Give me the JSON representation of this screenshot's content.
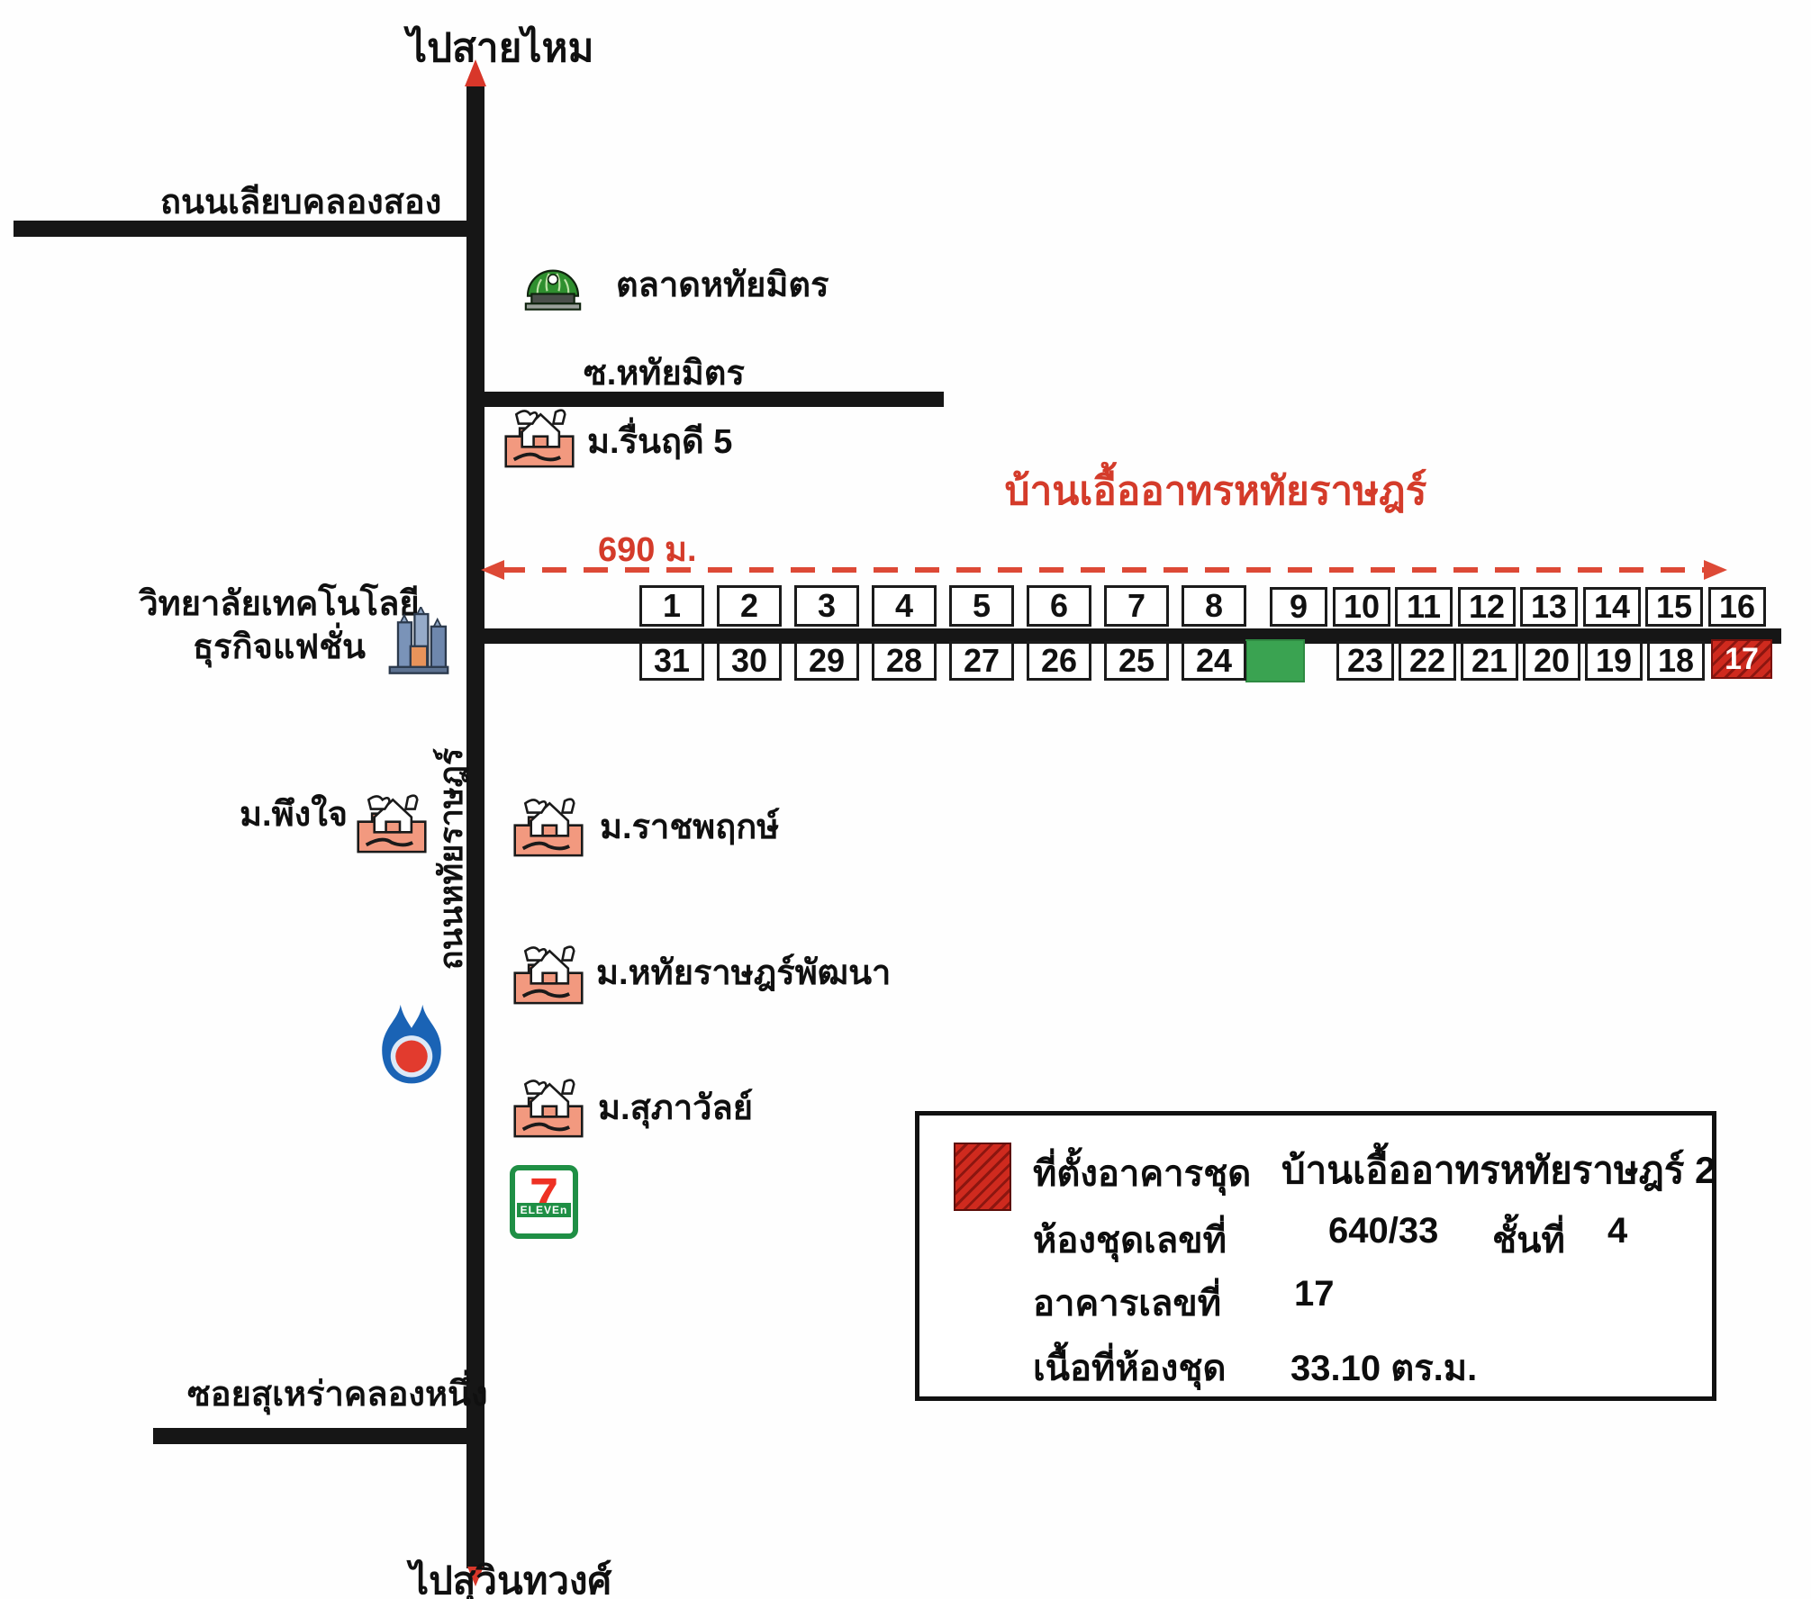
{
  "title": {
    "text": "บ้านเอื้ออาทรหทัยราษฎร์"
  },
  "distance": {
    "label": "690 ม."
  },
  "roads": {
    "top_destination": "ไปสายไหม",
    "bottom_destination": "ไปสุวินทวงศ์",
    "khlong_song_road": "ถนนเลียบคลองสอง",
    "hathai_mit_soi": "ซ.หทัยมิตร",
    "surao_khlong_nueng_soi": "ซอยสุเหร่าคลองหนึ่ง",
    "vertical_road_name": "ถนนหทัยราษฎร์"
  },
  "places": {
    "market": "ตลาดหทัยมิตร",
    "village_ruenrudee": "ม.รื่นฤดี 5",
    "college_line1": "วิทยาลัยเทคโนโลยี",
    "college_line2": "ธุรกิจแฟชั่น",
    "village_pungjai": "ม.พึงใจ",
    "village_ratchaphruek": "ม.ราชพฤกษ์",
    "village_hathairat_pattana": "ม.หทัยราษฎร์พัฒนา",
    "village_suphawan": "ม.สุภาวัลย์",
    "seven_band": "ELEVEn",
    "seven_digit": "7"
  },
  "buildings": {
    "row_top_left": [
      "1",
      "2",
      "3",
      "4",
      "5",
      "6",
      "7",
      "8"
    ],
    "row_top_right": [
      "9",
      "10",
      "11",
      "12",
      "13",
      "14",
      "15",
      "16"
    ],
    "row_bottom_left": [
      "31",
      "30",
      "29",
      "28",
      "27",
      "26",
      "25",
      "24"
    ],
    "row_bottom_right": [
      "23",
      "22",
      "21",
      "20",
      "19",
      "18"
    ],
    "highlighted": "17"
  },
  "legend": {
    "site_label": "ที่ตั้งอาคารชุด",
    "site_value": "บ้านเอื้ออาทรหทัยราษฎร์ 2",
    "unit_label": "ห้องชุดเลขที่",
    "unit_value": "640/33",
    "floor_label": "ชั้นที่",
    "floor_value": "4",
    "building_label": "อาคารเลขที่",
    "building_value": "17",
    "area_label": "เนื้อที่ห้องชุด",
    "area_value": "33.10 ตร.ม."
  },
  "colors": {
    "accent_red": "#d43b2a",
    "hatch_red": "#cf2a1e",
    "green_block": "#3aa351",
    "road_black": "#161616",
    "ptt_blue": "#1a63b5",
    "seven_green": "#1f8f45"
  }
}
